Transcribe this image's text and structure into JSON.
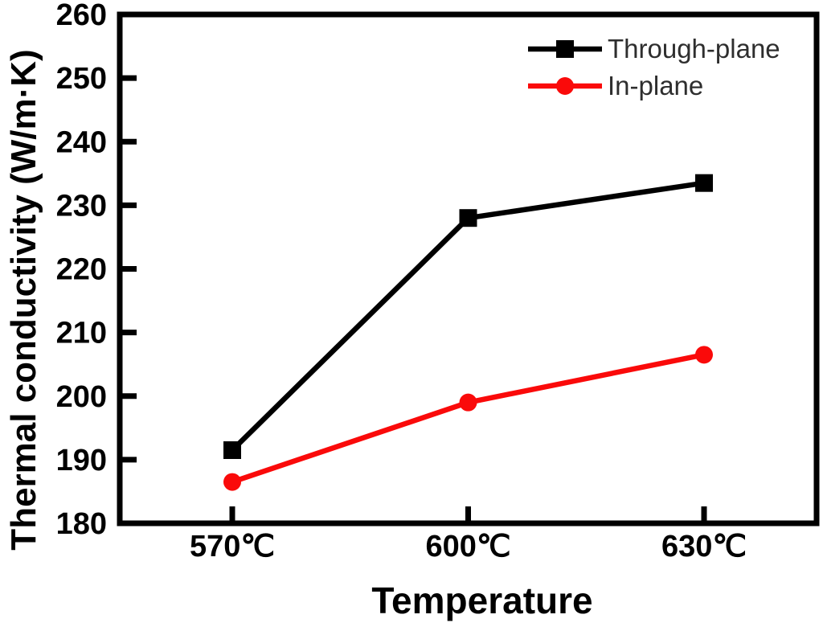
{
  "figure": {
    "background_color": "#ffffff"
  },
  "chart_data": {
    "type": "line",
    "title": "",
    "xlabel": "Temperature",
    "ylabel": "Thermal conductivity (W/m·K)",
    "categories": [
      "570℃",
      "600℃",
      "630℃"
    ],
    "series": [
      {
        "name": "Through-plane",
        "marker": "square",
        "color": "#000000",
        "values": [
          191.5,
          228,
          233.5
        ]
      },
      {
        "name": "In-plane",
        "marker": "circle",
        "color": "#fa0a0a",
        "values": [
          186.5,
          199,
          206.5
        ]
      }
    ],
    "ylim": [
      180,
      260
    ],
    "ytick_step": 10,
    "ytick_labels": [
      "180",
      "190",
      "200",
      "210",
      "220",
      "230",
      "240",
      "250",
      "260"
    ],
    "grid": false,
    "legend_position": "top-right",
    "axis_color": "#000000",
    "tick_label_color": "#000000",
    "legend_text_color": "#2e2e2e"
  }
}
